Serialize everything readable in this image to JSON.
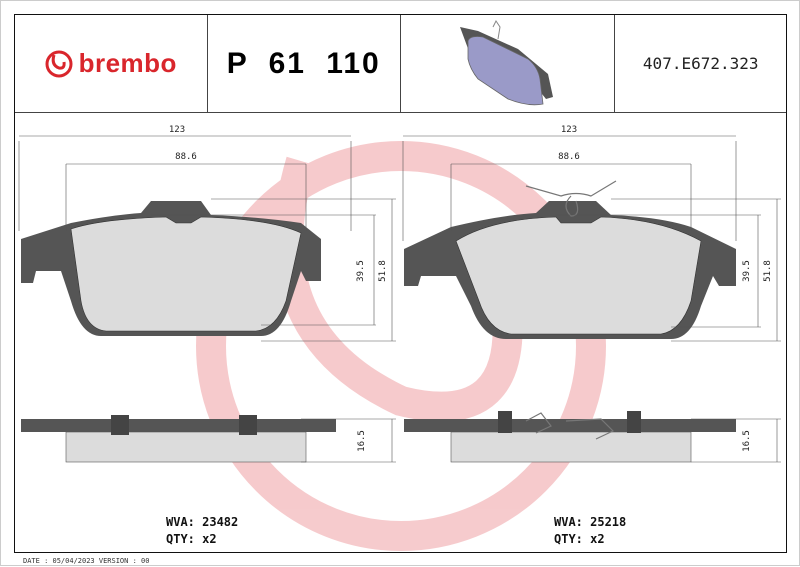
{
  "header": {
    "brand": "brembo",
    "part_number": "P 61 110",
    "reference": "407.E672.323"
  },
  "left_pad": {
    "dims": {
      "width": "123",
      "inner_width": "88.6",
      "height_inner": "39.5",
      "height": "51.8",
      "thickness": "16.5"
    },
    "wva_label": "WVA: 23482",
    "qty_label": "QTY: x2"
  },
  "right_pad": {
    "dims": {
      "width": "123",
      "inner_width": "88.6",
      "height_inner": "39.5",
      "height": "51.8",
      "thickness": "16.5"
    },
    "wva_label": "WVA: 25218",
    "qty_label": "QTY: x2"
  },
  "footer": "DATE : 05/04/2023 VERSION : 00",
  "colors": {
    "brand": "#d9262c",
    "watermark": "#f6c9cb",
    "pad_fill": "#dcdcdc",
    "backing": "#555555",
    "preview_pad": "#9a9ac8"
  }
}
